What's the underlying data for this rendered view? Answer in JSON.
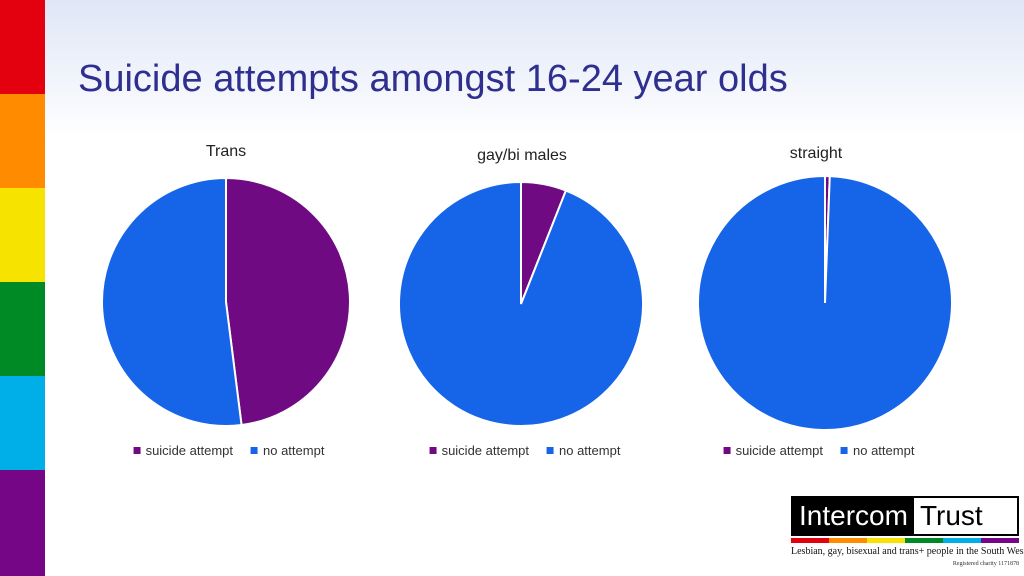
{
  "slide": {
    "title": "Suicide attempts amongst 16-24 year olds"
  },
  "rainbow": [
    "#e3000f",
    "#ff8c00",
    "#f7e300",
    "#008a26",
    "#00aee8",
    "#750787"
  ],
  "colors": {
    "attempt": "#6f0a82",
    "no_attempt": "#1664e8"
  },
  "chart_data": [
    {
      "type": "pie",
      "title": "Trans",
      "labels": [
        "suicide attempt",
        "no attempt"
      ],
      "values": [
        48,
        52
      ],
      "legend": "bottom"
    },
    {
      "type": "pie",
      "title": "gay/bi males",
      "labels": [
        "suicide attempt",
        "no attempt"
      ],
      "values": [
        6,
        94
      ],
      "legend": "bottom"
    },
    {
      "type": "pie",
      "title": "straight",
      "labels": [
        "suicide attempt",
        "no attempt"
      ],
      "values": [
        0.6,
        99.4
      ],
      "legend": "bottom"
    }
  ],
  "logo": {
    "word1": "Intercom",
    "word2": "Trust",
    "tagline": "Lesbian, gay, bisexual and trans+ people in the South West",
    "charity": "Registered charity 1171878"
  }
}
